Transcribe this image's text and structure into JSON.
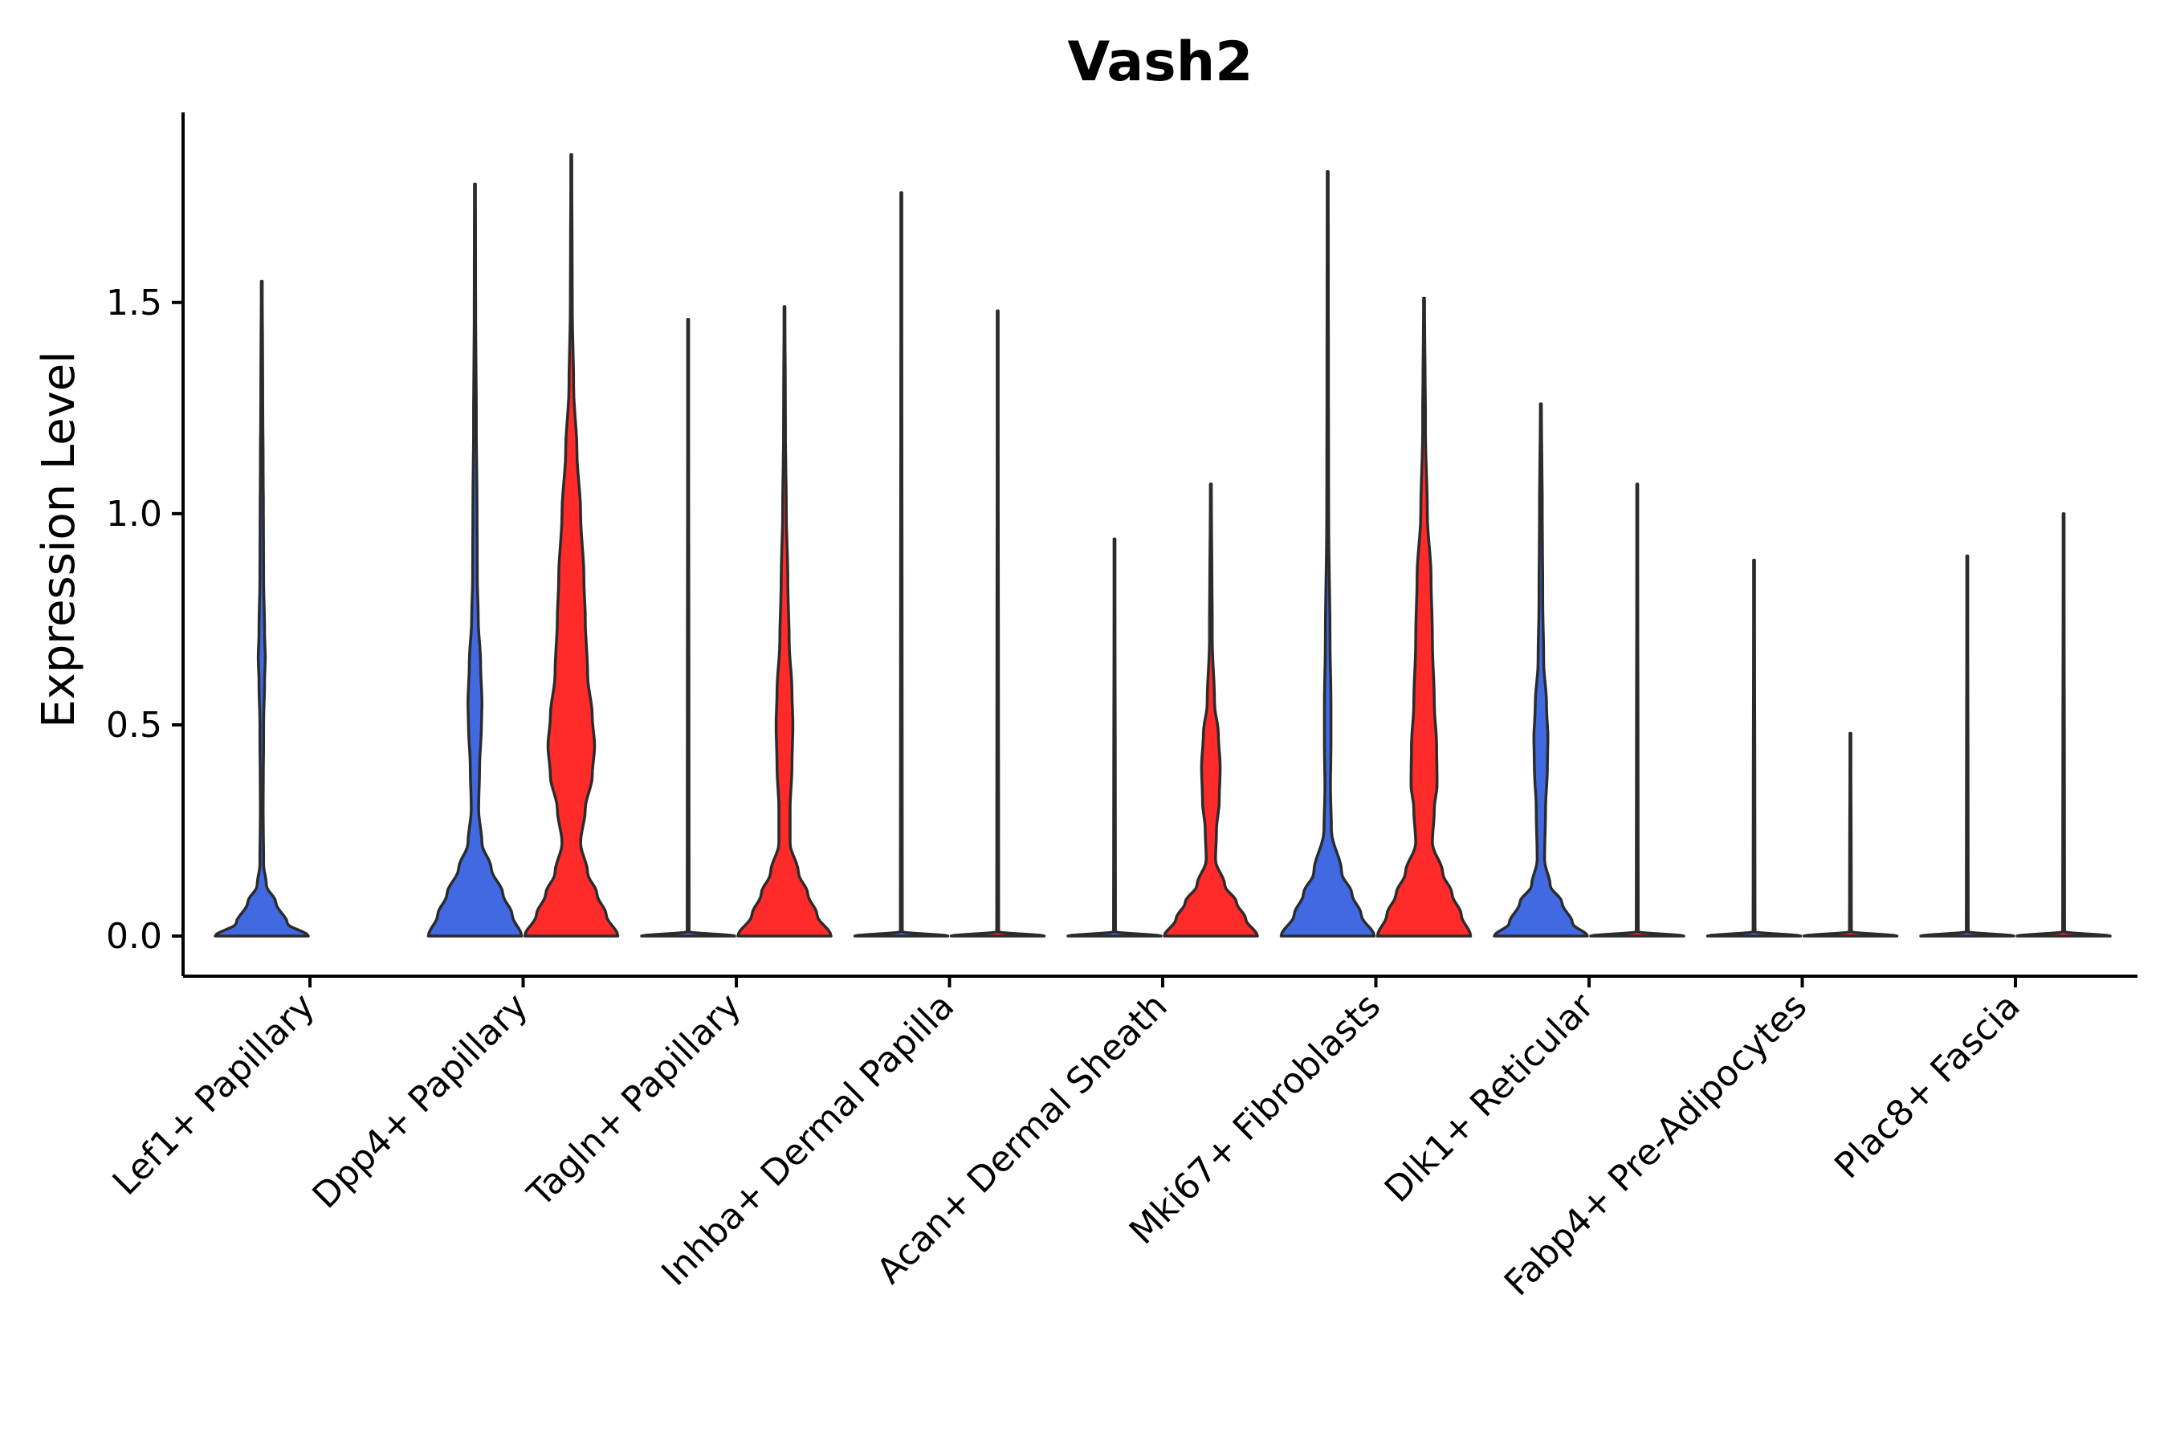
{
  "chart_data": {
    "type": "violin",
    "title": "Vash2",
    "xlabel": "",
    "ylabel": "Expression Level",
    "ylim": [
      -0.095,
      1.95
    ],
    "yticks": [
      0.0,
      0.5,
      1.0,
      1.5
    ],
    "ytick_labels": [
      "0.0",
      "0.5",
      "1.0",
      "1.5"
    ],
    "categories": [
      "Lef1+ Papillary",
      "Dpp4+ Papillary",
      "Tagln+ Papillary",
      "Inhba+ Dermal Papilla",
      "Acan+ Dermal Sheath",
      "Mki67+ Fibroblasts",
      "Dlk1+ Reticular",
      "Fabp4+ Pre-Adipocytes",
      "Plac8+ Fascia"
    ],
    "series": [
      {
        "name": "blue",
        "color": "#4169E1",
        "violins": [
          {
            "category": "Lef1+ Papillary",
            "max": 1.55,
            "profile": [
              [
                0,
                1.0
              ],
              [
                0.03,
                0.55
              ],
              [
                0.08,
                0.3
              ],
              [
                0.12,
                0.1
              ],
              [
                0.17,
                0.04
              ],
              [
                0.3,
                0.03
              ],
              [
                0.5,
                0.04
              ],
              [
                0.6,
                0.06
              ],
              [
                0.66,
                0.075
              ],
              [
                0.72,
                0.06
              ],
              [
                0.85,
                0.04
              ],
              [
                1.0,
                0.035
              ],
              [
                1.1,
                0.03
              ],
              [
                1.3,
                0.02
              ],
              [
                1.55,
                0.01
              ]
            ]
          },
          {
            "category": "Dpp4+ Papillary",
            "max": 1.78,
            "profile": [
              [
                0,
                1.0
              ],
              [
                0.05,
                0.8
              ],
              [
                0.1,
                0.6
              ],
              [
                0.16,
                0.35
              ],
              [
                0.22,
                0.15
              ],
              [
                0.3,
                0.08
              ],
              [
                0.4,
                0.1
              ],
              [
                0.5,
                0.14
              ],
              [
                0.55,
                0.15
              ],
              [
                0.65,
                0.12
              ],
              [
                0.75,
                0.07
              ],
              [
                0.85,
                0.05
              ],
              [
                1.0,
                0.045
              ],
              [
                1.2,
                0.03
              ],
              [
                1.5,
                0.015
              ],
              [
                1.78,
                0.01
              ]
            ]
          },
          {
            "category": "Tagln+ Papillary",
            "max": 1.46,
            "profile": [
              [
                0,
                1.0
              ],
              [
                0.01,
                0.02
              ],
              [
                1.46,
                0.01
              ]
            ]
          },
          {
            "category": "Inhba+ Dermal Papilla",
            "max": 1.76,
            "profile": [
              [
                0,
                1.0
              ],
              [
                0.01,
                0.02
              ],
              [
                1.76,
                0.01
              ]
            ]
          },
          {
            "category": "Acan+ Dermal Sheath",
            "max": 0.94,
            "profile": [
              [
                0,
                1.0
              ],
              [
                0.01,
                0.02
              ],
              [
                0.94,
                0.01
              ]
            ]
          },
          {
            "category": "Mki67+ Fibroblasts",
            "max": 1.81,
            "profile": [
              [
                0,
                1.0
              ],
              [
                0.05,
                0.72
              ],
              [
                0.1,
                0.52
              ],
              [
                0.15,
                0.3
              ],
              [
                0.25,
                0.08
              ],
              [
                0.35,
                0.06
              ],
              [
                0.45,
                0.07
              ],
              [
                0.55,
                0.07
              ],
              [
                0.7,
                0.05
              ],
              [
                1.0,
                0.02
              ],
              [
                1.4,
                0.015
              ],
              [
                1.81,
                0.01
              ]
            ]
          },
          {
            "category": "Dlk1+ Reticular",
            "max": 1.26,
            "profile": [
              [
                0,
                1.0
              ],
              [
                0.03,
                0.68
              ],
              [
                0.08,
                0.45
              ],
              [
                0.12,
                0.2
              ],
              [
                0.18,
                0.08
              ],
              [
                0.3,
                0.1
              ],
              [
                0.4,
                0.14
              ],
              [
                0.47,
                0.15
              ],
              [
                0.55,
                0.12
              ],
              [
                0.65,
                0.06
              ],
              [
                0.8,
                0.04
              ],
              [
                1.0,
                0.03
              ],
              [
                1.26,
                0.01
              ]
            ]
          },
          {
            "category": "Fabp4+ Pre-Adipocytes",
            "max": 0.89,
            "profile": [
              [
                0,
                1.0
              ],
              [
                0.01,
                0.02
              ],
              [
                0.89,
                0.01
              ]
            ]
          },
          {
            "category": "Plac8+ Fascia",
            "max": 0.9,
            "profile": [
              [
                0,
                1.0
              ],
              [
                0.01,
                0.02
              ],
              [
                0.9,
                0.01
              ]
            ]
          }
        ]
      },
      {
        "name": "red",
        "color": "#FF2A2A",
        "violins": [
          {
            "category": "Lef1+ Papillary",
            "max": null,
            "profile": []
          },
          {
            "category": "Dpp4+ Papillary",
            "max": 1.85,
            "profile": [
              [
                0,
                1.0
              ],
              [
                0.05,
                0.75
              ],
              [
                0.1,
                0.55
              ],
              [
                0.15,
                0.35
              ],
              [
                0.22,
                0.2
              ],
              [
                0.3,
                0.3
              ],
              [
                0.38,
                0.45
              ],
              [
                0.45,
                0.5
              ],
              [
                0.52,
                0.45
              ],
              [
                0.62,
                0.35
              ],
              [
                0.75,
                0.3
              ],
              [
                0.85,
                0.27
              ],
              [
                1.0,
                0.2
              ],
              [
                1.15,
                0.12
              ],
              [
                1.3,
                0.05
              ],
              [
                1.5,
                0.02
              ],
              [
                1.85,
                0.01
              ]
            ]
          },
          {
            "category": "Tagln+ Papillary",
            "max": 1.49,
            "profile": [
              [
                0,
                1.0
              ],
              [
                0.05,
                0.7
              ],
              [
                0.1,
                0.5
              ],
              [
                0.15,
                0.3
              ],
              [
                0.22,
                0.12
              ],
              [
                0.3,
                0.12
              ],
              [
                0.4,
                0.16
              ],
              [
                0.5,
                0.18
              ],
              [
                0.58,
                0.16
              ],
              [
                0.7,
                0.1
              ],
              [
                0.85,
                0.07
              ],
              [
                1.0,
                0.04
              ],
              [
                1.2,
                0.02
              ],
              [
                1.49,
                0.01
              ]
            ]
          },
          {
            "category": "Inhba+ Dermal Papilla",
            "max": 1.48,
            "profile": [
              [
                0,
                1.0
              ],
              [
                0.01,
                0.02
              ],
              [
                1.48,
                0.01
              ]
            ]
          },
          {
            "category": "Acan+ Dermal Sheath",
            "max": 1.07,
            "profile": [
              [
                0,
                1.0
              ],
              [
                0.04,
                0.75
              ],
              [
                0.08,
                0.55
              ],
              [
                0.12,
                0.3
              ],
              [
                0.18,
                0.1
              ],
              [
                0.25,
                0.12
              ],
              [
                0.32,
                0.18
              ],
              [
                0.4,
                0.2
              ],
              [
                0.48,
                0.16
              ],
              [
                0.55,
                0.08
              ],
              [
                0.7,
                0.03
              ],
              [
                1.07,
                0.01
              ]
            ]
          },
          {
            "category": "Mki67+ Fibroblasts",
            "max": 1.51,
            "profile": [
              [
                0,
                1.0
              ],
              [
                0.05,
                0.8
              ],
              [
                0.1,
                0.6
              ],
              [
                0.15,
                0.4
              ],
              [
                0.22,
                0.18
              ],
              [
                0.3,
                0.22
              ],
              [
                0.36,
                0.28
              ],
              [
                0.45,
                0.27
              ],
              [
                0.55,
                0.22
              ],
              [
                0.7,
                0.18
              ],
              [
                0.85,
                0.15
              ],
              [
                1.0,
                0.07
              ],
              [
                1.2,
                0.03
              ],
              [
                1.51,
                0.01
              ]
            ]
          },
          {
            "category": "Dlk1+ Reticular",
            "max": 1.07,
            "profile": [
              [
                0,
                1.0
              ],
              [
                0.01,
                0.02
              ],
              [
                1.07,
                0.01
              ]
            ]
          },
          {
            "category": "Fabp4+ Pre-Adipocytes",
            "max": 0.48,
            "profile": [
              [
                0,
                1.0
              ],
              [
                0.01,
                0.02
              ],
              [
                0.48,
                0.01
              ]
            ]
          },
          {
            "category": "Plac8+ Fascia",
            "max": 1.0,
            "profile": [
              [
                0,
                1.0
              ],
              [
                0.01,
                0.02
              ],
              [
                1.0,
                0.01
              ]
            ]
          }
        ]
      }
    ]
  }
}
